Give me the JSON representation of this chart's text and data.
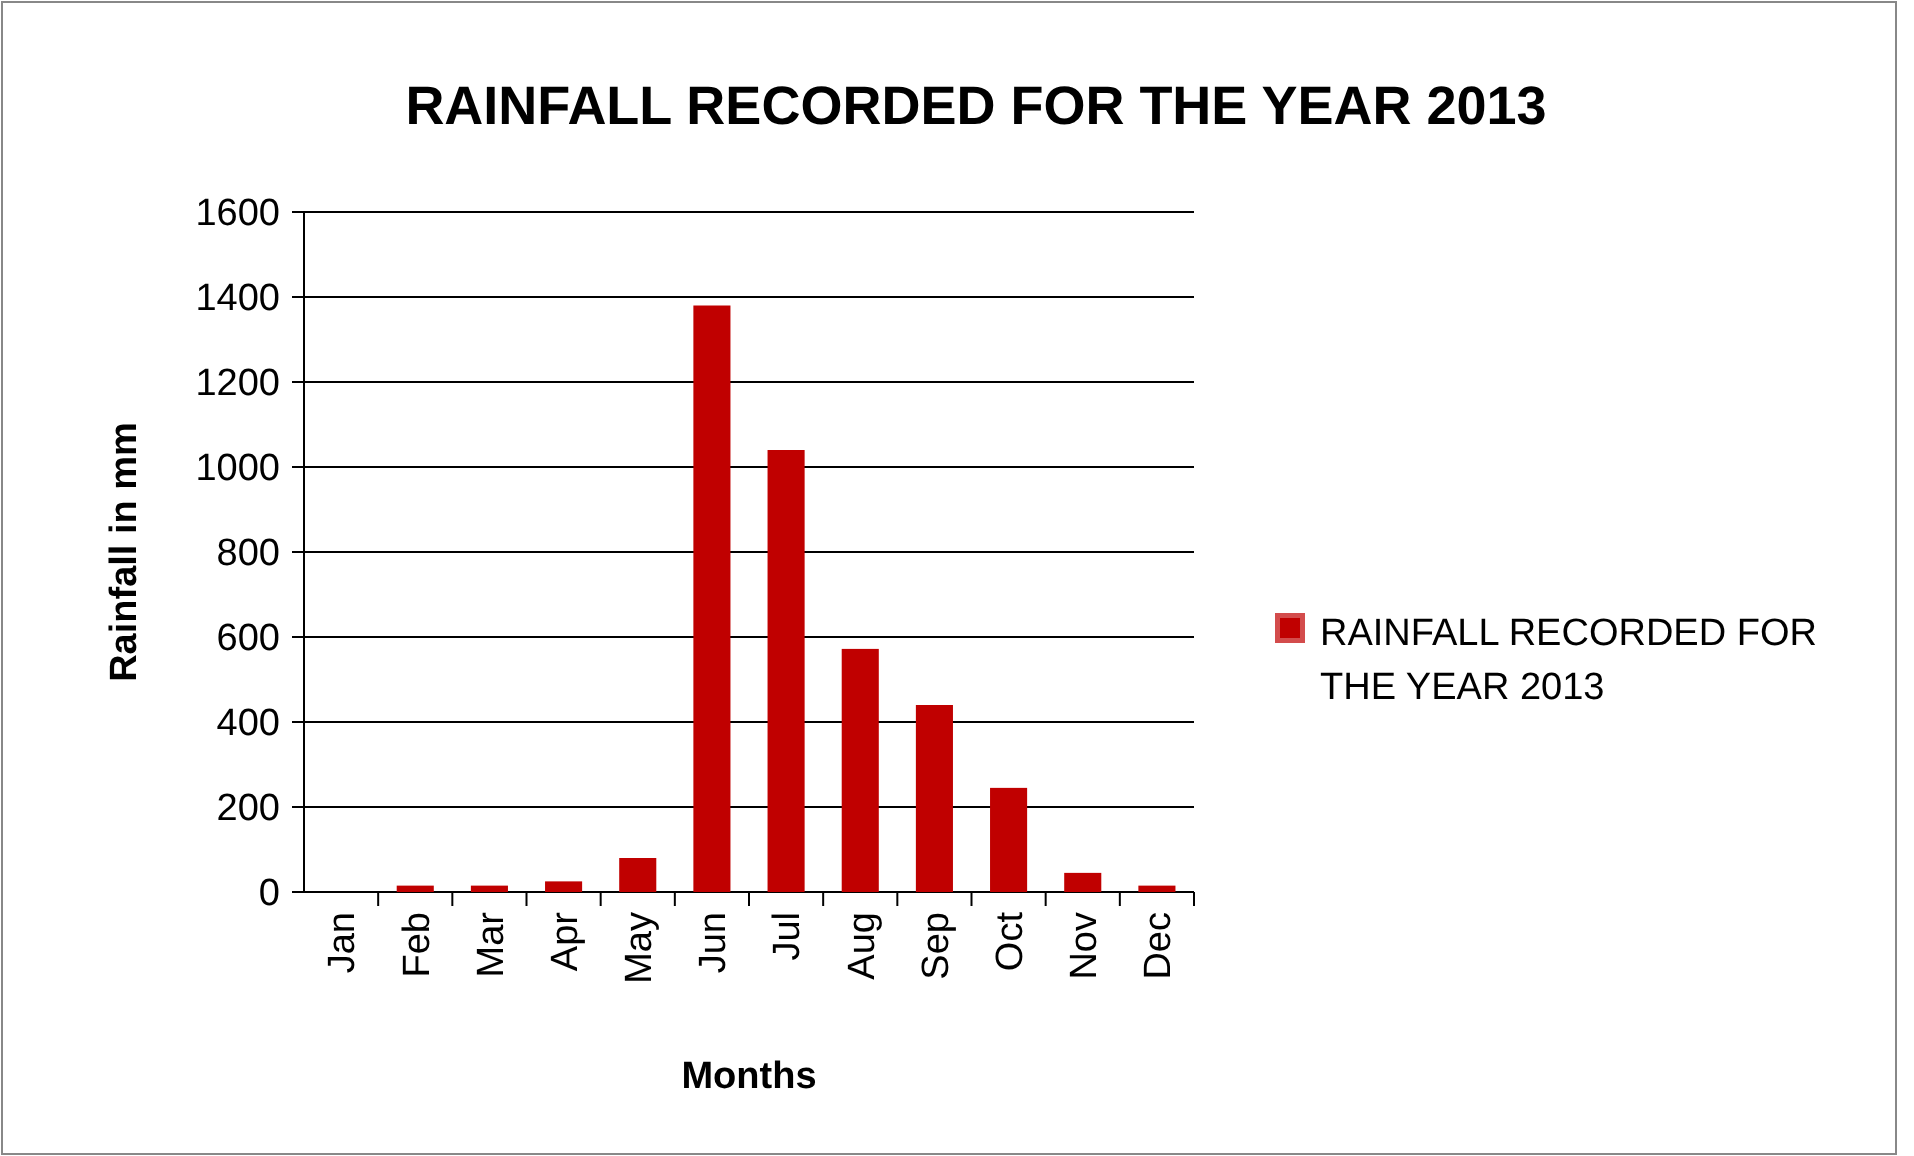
{
  "chart_data": {
    "type": "bar",
    "title": "RAINFALL RECORDED  FOR THE YEAR 2013",
    "xlabel": "Months",
    "ylabel": "Rainfall in mm",
    "categories": [
      "Jan",
      "Feb",
      "Mar",
      "Apr",
      "May",
      "Jun",
      "Jul",
      "Aug",
      "Sep",
      "Oct",
      "Nov",
      "Dec"
    ],
    "series": [
      {
        "name": "RAINFALL RECORDED  FOR THE YEAR 2013",
        "color": "#c00000",
        "values": [
          0,
          15,
          15,
          25,
          80,
          1380,
          1040,
          572,
          440,
          245,
          45,
          15
        ]
      }
    ],
    "ylim": [
      0,
      1600
    ],
    "yticks": [
      0,
      200,
      400,
      600,
      800,
      1000,
      1200,
      1400,
      1600
    ],
    "grid": "y",
    "legend": "right"
  }
}
